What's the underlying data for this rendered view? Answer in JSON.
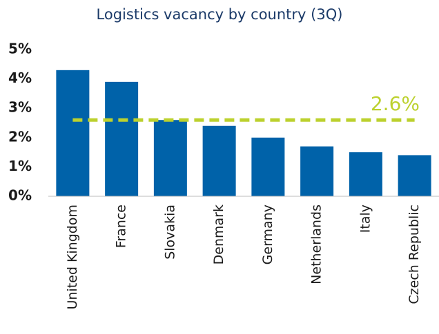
{
  "chart_data": {
    "type": "bar",
    "title": "Logistics vacancy by country (3Q)",
    "categories": [
      "United Kingdom",
      "France",
      "Slovakia",
      "Denmark",
      "Germany",
      "Netherlands",
      "Italy",
      "Czech Republic"
    ],
    "values": [
      4.3,
      3.9,
      2.6,
      2.4,
      2.0,
      1.7,
      1.5,
      1.4
    ],
    "color": "#0062a9",
    "ylim": [
      0,
      5
    ],
    "yticks": [
      {
        "value": 0,
        "label": "0%"
      },
      {
        "value": 1,
        "label": "1%"
      },
      {
        "value": 2,
        "label": "2%"
      },
      {
        "value": 3,
        "label": "3%"
      },
      {
        "value": 4,
        "label": "4%"
      },
      {
        "value": 5,
        "label": "5%"
      }
    ],
    "grid": false,
    "reference_line": {
      "value": 2.6,
      "label": "2.6%",
      "color": "#bcd12e"
    }
  }
}
